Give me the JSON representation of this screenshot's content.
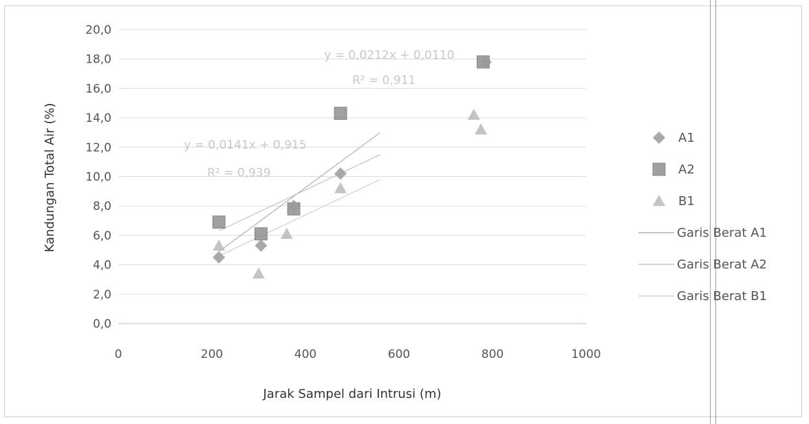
{
  "chart_data": {
    "type": "scatter",
    "xlabel": "Jarak Sampel dari Intrusi (m)",
    "ylabel": "Kandungan Total Air (%)",
    "xlim": [
      0,
      1000
    ],
    "ylim": [
      0,
      20
    ],
    "x_ticks": [
      "0",
      "200",
      "400",
      "600",
      "800",
      "1000"
    ],
    "y_ticks": [
      "0,0",
      "2,0",
      "4,0",
      "6,0",
      "8,0",
      "10,0",
      "12,0",
      "14,0",
      "16,0",
      "18,0",
      "20,0"
    ],
    "grid": "horizontal",
    "legend_position": "right",
    "series": [
      {
        "name": "A1",
        "marker": "diamond",
        "color": "#9a9a9a",
        "points": [
          [
            215,
            4.5
          ],
          [
            305,
            5.3
          ],
          [
            375,
            8.0
          ],
          [
            475,
            10.2
          ],
          [
            785,
            17.8
          ]
        ]
      },
      {
        "name": "A2",
        "marker": "square",
        "color": "#8f8f8f",
        "points": [
          [
            215,
            6.9
          ],
          [
            305,
            6.1
          ],
          [
            375,
            7.8
          ],
          [
            475,
            14.3
          ],
          [
            780,
            17.8
          ]
        ]
      },
      {
        "name": "B1",
        "marker": "triangle",
        "color": "#b5b5b5",
        "points": [
          [
            215,
            5.3
          ],
          [
            300,
            3.4
          ],
          [
            360,
            6.1
          ],
          [
            475,
            9.2
          ],
          [
            760,
            14.2
          ],
          [
            775,
            13.2
          ]
        ]
      }
    ],
    "trendlines": [
      {
        "name": "Garis Berat A1",
        "color": "#b0b0b0",
        "from": [
          215,
          4.9
        ],
        "to": [
          560,
          13.0
        ]
      },
      {
        "name": "Garis Berat A2",
        "color": "#c4c4c4",
        "from": [
          215,
          6.3
        ],
        "to": [
          560,
          11.5
        ]
      },
      {
        "name": "Garis Berat B1",
        "color": "#d0d0d0",
        "from": [
          215,
          4.6
        ],
        "to": [
          560,
          9.8
        ]
      }
    ],
    "annotations": [
      {
        "text": "y = 0,0212x + 0,0110",
        "x": 440,
        "y": 18.0
      },
      {
        "text": "R² = 0,911",
        "x": 500,
        "y": 16.3
      },
      {
        "text": "y = 0,0141x + 0,915",
        "x": 140,
        "y": 11.9
      },
      {
        "text": "R² = 0,939",
        "x": 190,
        "y": 10.0
      }
    ]
  }
}
